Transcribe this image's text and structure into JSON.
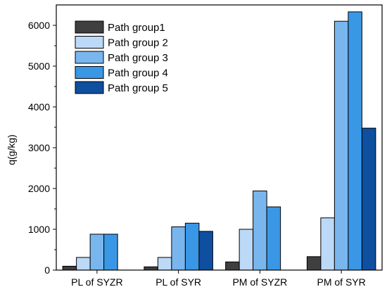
{
  "chart_data": {
    "type": "bar",
    "ylabel": "q(g/kg)",
    "xlabel": "",
    "ylim": [
      0,
      6500
    ],
    "yticks": [
      0,
      1000,
      2000,
      3000,
      4000,
      5000,
      6000
    ],
    "categories": [
      "PL of SYZR",
      "PL of SYR",
      "PM of SYZR",
      "PM of SYR"
    ],
    "series": [
      {
        "name": "Path group1",
        "color": "#3f3f3f",
        "values": [
          95,
          80,
          200,
          330
        ]
      },
      {
        "name": "Path group 2",
        "color": "#bcd9f7",
        "values": [
          310,
          310,
          1000,
          1280
        ]
      },
      {
        "name": "Path group 3",
        "color": "#7ab6ee",
        "values": [
          880,
          1060,
          1940,
          6100
        ]
      },
      {
        "name": "Path group 4",
        "color": "#3a97e6",
        "values": [
          880,
          1150,
          1550,
          6330
        ]
      },
      {
        "name": "Path group 5",
        "color": "#0f4fa0",
        "values": [
          null,
          950,
          null,
          3480
        ]
      }
    ],
    "legend_position": "top-left",
    "grid": false
  }
}
